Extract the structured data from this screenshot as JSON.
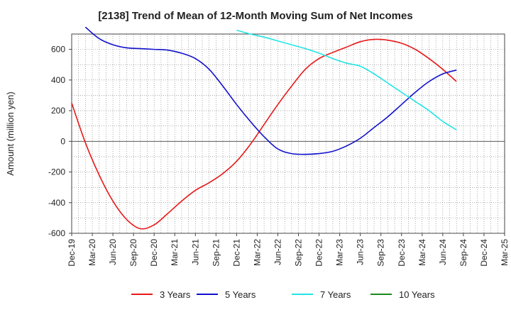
{
  "chart_data": {
    "type": "line",
    "title": "[2138]  Trend of Mean of 12-Month Moving Sum of Net Incomes",
    "xlabel": "",
    "ylabel": "Amount (million yen)",
    "ylim": [
      -600,
      700
    ],
    "yticks": [
      -600,
      -400,
      -200,
      0,
      200,
      400,
      600
    ],
    "xticks": [
      "Dec-19",
      "Mar-20",
      "Jun-20",
      "Sep-20",
      "Dec-20",
      "Mar-21",
      "Jun-21",
      "Sep-21",
      "Dec-21",
      "Mar-22",
      "Jun-22",
      "Sep-22",
      "Dec-22",
      "Mar-23",
      "Jun-23",
      "Sep-23",
      "Dec-23",
      "Mar-24",
      "Jun-24",
      "Sep-24",
      "Dec-24",
      "Mar-25"
    ],
    "grid": true,
    "legend_position": "bottom",
    "series": [
      {
        "name": "3 Years",
        "color": "#e8191a",
        "points": [
          [
            0,
            250
          ],
          [
            1,
            -10
          ],
          [
            2,
            -220
          ],
          [
            3,
            -390
          ],
          [
            4,
            -510
          ],
          [
            5,
            -570
          ],
          [
            6,
            -545
          ],
          [
            7,
            -470
          ],
          [
            8,
            -390
          ],
          [
            9,
            -320
          ],
          [
            10,
            -270
          ],
          [
            11,
            -210
          ],
          [
            12,
            -130
          ],
          [
            13,
            -20
          ],
          [
            14,
            110
          ],
          [
            15,
            240
          ],
          [
            16,
            360
          ],
          [
            17,
            470
          ],
          [
            18,
            540
          ],
          [
            19,
            580
          ],
          [
            20,
            615
          ],
          [
            21,
            650
          ],
          [
            22,
            665
          ],
          [
            23,
            660
          ],
          [
            24,
            640
          ],
          [
            25,
            600
          ],
          [
            26,
            540
          ],
          [
            27,
            470
          ],
          [
            28,
            390
          ]
        ]
      },
      {
        "name": "5 Years",
        "color": "#1010cc",
        "points": [
          [
            1,
            745
          ],
          [
            2,
            670
          ],
          [
            3,
            630
          ],
          [
            4,
            610
          ],
          [
            5,
            605
          ],
          [
            6,
            600
          ],
          [
            7,
            595
          ],
          [
            8,
            575
          ],
          [
            9,
            540
          ],
          [
            10,
            470
          ],
          [
            11,
            360
          ],
          [
            12,
            240
          ],
          [
            13,
            130
          ],
          [
            14,
            30
          ],
          [
            15,
            -50
          ],
          [
            16,
            -80
          ],
          [
            17,
            -85
          ],
          [
            18,
            -80
          ],
          [
            19,
            -65
          ],
          [
            20,
            -30
          ],
          [
            21,
            20
          ],
          [
            22,
            90
          ],
          [
            23,
            160
          ],
          [
            24,
            240
          ],
          [
            25,
            320
          ],
          [
            26,
            390
          ],
          [
            27,
            440
          ],
          [
            28,
            465
          ]
        ]
      },
      {
        "name": "7 Years",
        "color": "#22e4e4",
        "points": [
          [
            12,
            725
          ],
          [
            13,
            700
          ],
          [
            14,
            680
          ],
          [
            15,
            655
          ],
          [
            16,
            630
          ],
          [
            17,
            605
          ],
          [
            18,
            575
          ],
          [
            19,
            540
          ],
          [
            20,
            510
          ],
          [
            21,
            490
          ],
          [
            22,
            440
          ],
          [
            23,
            380
          ],
          [
            24,
            320
          ],
          [
            25,
            260
          ],
          [
            26,
            200
          ],
          [
            27,
            130
          ],
          [
            28,
            75
          ]
        ]
      },
      {
        "name": "10 Years",
        "color": "#1a8a1a",
        "points": []
      }
    ]
  }
}
